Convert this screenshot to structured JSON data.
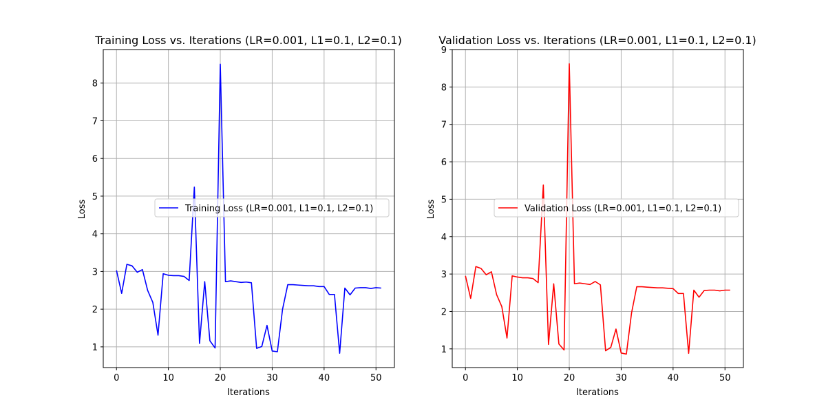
{
  "chart_data": [
    {
      "type": "line",
      "title": "Training Loss vs. Iterations (LR=0.001, L1=0.1, L2=0.1)",
      "xlabel": "Iterations",
      "ylabel": "Loss",
      "xlim": [
        -2.55,
        53.55
      ],
      "ylim": [
        0.45,
        8.89
      ],
      "xticks": [
        0,
        10,
        20,
        30,
        40,
        50
      ],
      "yticks": [
        1,
        2,
        3,
        4,
        5,
        6,
        7,
        8
      ],
      "grid": true,
      "legend_position": "center-right",
      "series": [
        {
          "name": "Training Loss (LR=0.001, L1=0.1, L2=0.1)",
          "color": "#0000ff",
          "x": [
            0,
            1,
            2,
            3,
            4,
            5,
            6,
            7,
            8,
            9,
            10,
            11,
            12,
            13,
            14,
            15,
            16,
            17,
            18,
            19,
            20,
            21,
            22,
            23,
            24,
            25,
            26,
            27,
            28,
            29,
            30,
            31,
            32,
            33,
            34,
            35,
            36,
            37,
            38,
            39,
            40,
            41,
            42,
            43,
            44,
            45,
            46,
            47,
            48,
            49,
            50,
            51
          ],
          "values": [
            3.03,
            2.42,
            3.19,
            3.15,
            2.98,
            3.05,
            2.5,
            2.18,
            1.31,
            2.94,
            2.9,
            2.89,
            2.89,
            2.87,
            2.76,
            5.24,
            1.09,
            2.73,
            1.16,
            0.97,
            8.5,
            2.73,
            2.75,
            2.73,
            2.71,
            2.72,
            2.7,
            0.96,
            1.01,
            1.57,
            0.89,
            0.87,
            2.0,
            2.65,
            2.65,
            2.64,
            2.63,
            2.62,
            2.62,
            2.6,
            2.6,
            2.39,
            2.39,
            0.83,
            2.56,
            2.38,
            2.56,
            2.57,
            2.57,
            2.55,
            2.57,
            2.56
          ]
        }
      ]
    },
    {
      "type": "line",
      "title": "Validation Loss vs. Iterations (LR=0.001, L1=0.1, L2=0.1)",
      "xlabel": "Iterations",
      "ylabel": "Loss",
      "xlim": [
        -2.55,
        53.55
      ],
      "ylim": [
        0.5,
        9.0
      ],
      "xticks": [
        0,
        10,
        20,
        30,
        40,
        50
      ],
      "yticks": [
        1,
        2,
        3,
        4,
        5,
        6,
        7,
        8,
        9
      ],
      "grid": true,
      "legend_position": "center-right",
      "series": [
        {
          "name": "Validation Loss (LR=0.001, L1=0.1, L2=0.1)",
          "color": "#ff0000",
          "x": [
            0,
            1,
            2,
            3,
            4,
            5,
            6,
            7,
            8,
            9,
            10,
            11,
            12,
            13,
            14,
            15,
            16,
            17,
            18,
            19,
            20,
            21,
            22,
            23,
            24,
            25,
            26,
            27,
            28,
            29,
            30,
            31,
            32,
            33,
            34,
            35,
            36,
            37,
            38,
            39,
            40,
            41,
            42,
            43,
            44,
            45,
            46,
            47,
            48,
            49,
            50,
            51
          ],
          "values": [
            2.95,
            2.35,
            3.2,
            3.15,
            2.98,
            3.06,
            2.45,
            2.13,
            1.29,
            2.95,
            2.92,
            2.9,
            2.9,
            2.88,
            2.77,
            5.38,
            1.12,
            2.74,
            1.13,
            0.97,
            8.62,
            2.74,
            2.76,
            2.74,
            2.72,
            2.8,
            2.71,
            0.95,
            1.04,
            1.53,
            0.89,
            0.86,
            1.96,
            2.66,
            2.66,
            2.65,
            2.64,
            2.63,
            2.63,
            2.62,
            2.61,
            2.48,
            2.48,
            0.88,
            2.57,
            2.38,
            2.56,
            2.57,
            2.57,
            2.55,
            2.57,
            2.57
          ]
        }
      ]
    }
  ]
}
